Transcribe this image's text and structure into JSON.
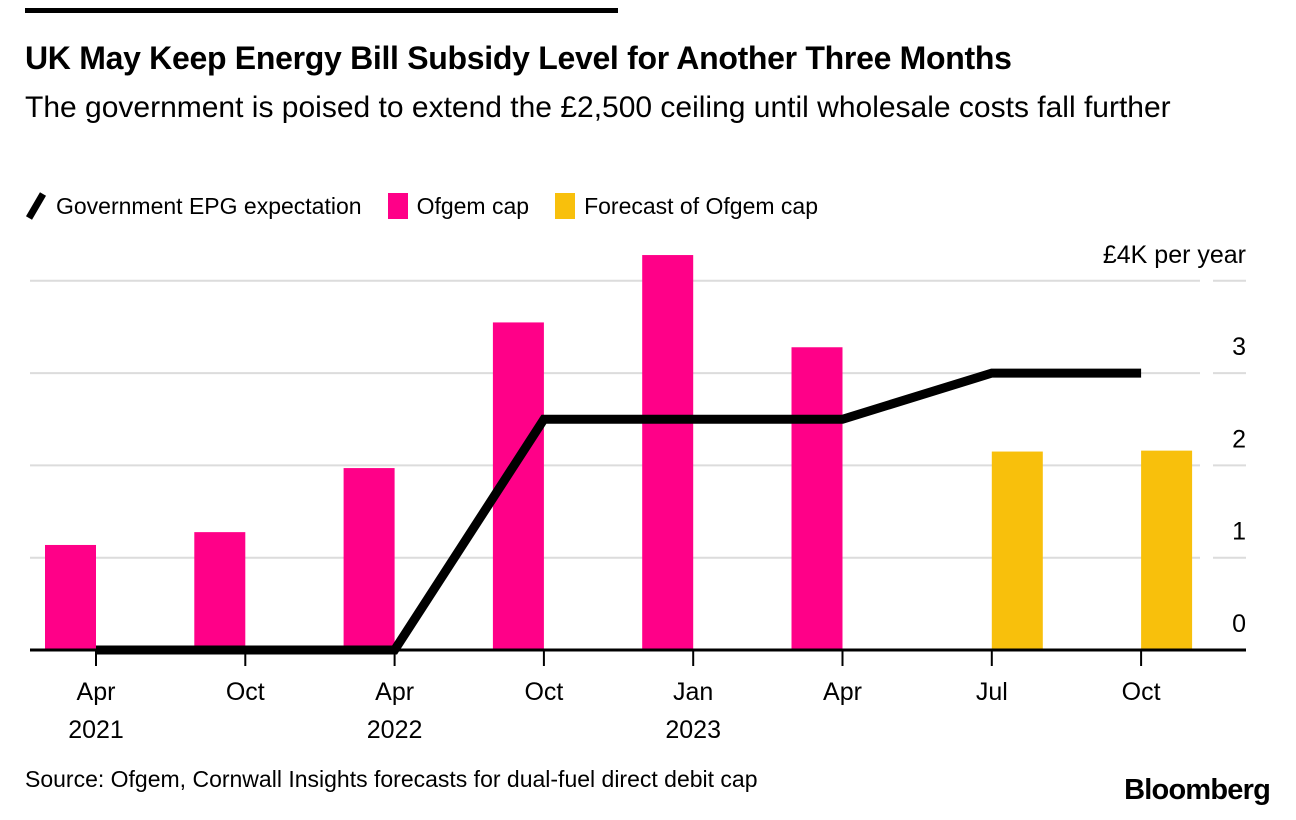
{
  "header": {
    "title": "UK May Keep Energy Bill Subsidy Level for Another Three Months",
    "subtitle": "The government is poised to extend the £2,500 ceiling until wholesale costs fall further"
  },
  "legend": [
    {
      "label": "Government EPG expectation",
      "type": "line",
      "color": "#000000"
    },
    {
      "label": "Ofgem cap",
      "type": "bar",
      "color": "#ff0088"
    },
    {
      "label": "Forecast of Ofgem cap",
      "type": "bar",
      "color": "#f8c00c"
    }
  ],
  "footer": {
    "source": "Source: Ofgem, Cornwall Insights forecasts for dual-fuel direct debit cap",
    "brand": "Bloomberg"
  },
  "chart_data": {
    "type": "bar",
    "title": "UK May Keep Energy Bill Subsidy Level for Another Three Months",
    "unit_label": "£4K per year",
    "y_unit": "£K per year",
    "ylim": [
      0,
      4.4
    ],
    "grid": "horizontal",
    "legend_position": "top",
    "grid_color": "#dcdcdc",
    "axis_color": "#000000",
    "categories": [
      {
        "month": "Apr",
        "year": "2021"
      },
      {
        "month": "Oct",
        "year": ""
      },
      {
        "month": "Apr",
        "year": "2022"
      },
      {
        "month": "Oct",
        "year": ""
      },
      {
        "month": "Jan",
        "year": "2023"
      },
      {
        "month": "Apr",
        "year": ""
      },
      {
        "month": "Jul",
        "year": ""
      },
      {
        "month": "Oct",
        "year": ""
      }
    ],
    "y_ticks": [
      {
        "value": 0,
        "label": "0"
      },
      {
        "value": 1,
        "label": "1"
      },
      {
        "value": 2,
        "label": "2"
      },
      {
        "value": 3,
        "label": "3"
      },
      {
        "value": 4,
        "label": "£4K per year"
      }
    ],
    "series": [
      {
        "name": "Government EPG expectation",
        "type": "line",
        "color": "#000000",
        "values": [
          0,
          0,
          0,
          2.5,
          2.5,
          2.5,
          3.0,
          3.0
        ]
      },
      {
        "name": "Ofgem cap",
        "type": "bar",
        "color": "#ff0088",
        "align": "right",
        "values": [
          1.138,
          1.277,
          1.971,
          3.549,
          4.279,
          3.28,
          null,
          null
        ]
      },
      {
        "name": "Forecast of Ofgem cap",
        "type": "bar",
        "color": "#f8c00c",
        "align": "left",
        "values": [
          null,
          null,
          null,
          null,
          null,
          null,
          2.15,
          2.16
        ]
      }
    ]
  }
}
